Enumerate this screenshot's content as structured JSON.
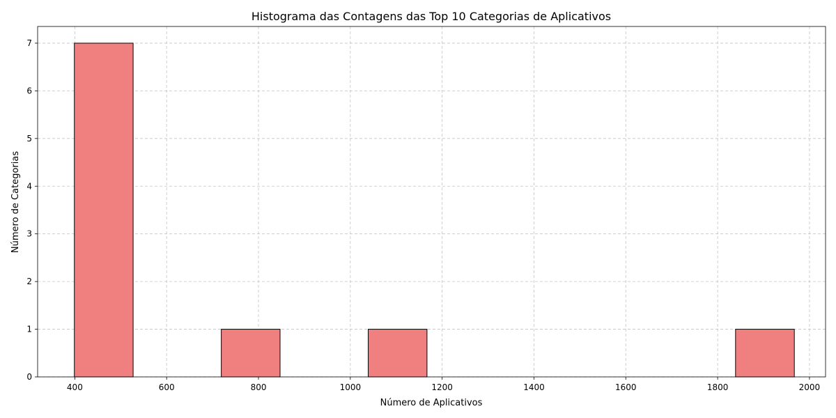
{
  "chart_data": {
    "type": "bar",
    "subtype": "histogram",
    "title": "Histograma das Contagens das Top 10 Categorias de Aplicativos",
    "xlabel": "Número de Aplicativos",
    "ylabel": "Número de Categorias",
    "xlim": [
      319,
      2035
    ],
    "ylim": [
      0,
      7.35
    ],
    "xticks": [
      400,
      600,
      800,
      1000,
      1200,
      1400,
      1600,
      1800,
      2000
    ],
    "yticks": [
      0,
      1,
      2,
      3,
      4,
      5,
      6,
      7
    ],
    "bins": [
      {
        "start": 399,
        "end": 527,
        "count": 7
      },
      {
        "start": 559,
        "end": 687,
        "count": 0
      },
      {
        "start": 719,
        "end": 847,
        "count": 1
      },
      {
        "start": 879,
        "end": 1007,
        "count": 0
      },
      {
        "start": 1039,
        "end": 1167,
        "count": 1
      },
      {
        "start": 1199,
        "end": 1327,
        "count": 0
      },
      {
        "start": 1359,
        "end": 1487,
        "count": 0
      },
      {
        "start": 1519,
        "end": 1647,
        "count": 0
      },
      {
        "start": 1679,
        "end": 1807,
        "count": 0
      },
      {
        "start": 1839,
        "end": 1967,
        "count": 1
      }
    ],
    "bar_color": "#f08080",
    "edge_color": "#000000",
    "grid": true,
    "legend": "none"
  }
}
